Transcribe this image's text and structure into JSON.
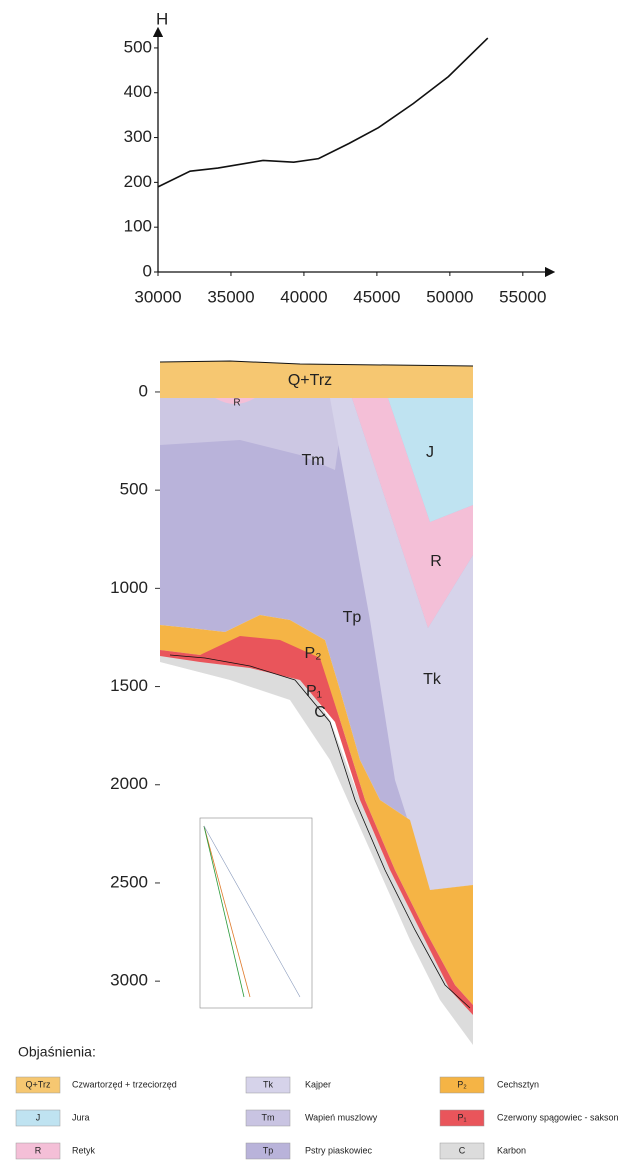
{
  "chart_data": {
    "type": "line",
    "y_label": "H",
    "x": [
      30000,
      32200,
      34100,
      37200,
      39300,
      41000,
      43100,
      45100,
      47500,
      49900,
      52600
    ],
    "values": [
      190,
      225,
      232,
      249,
      245,
      253,
      287,
      322,
      376,
      436,
      522
    ],
    "color": "#111111",
    "xlim": [
      30000,
      57000
    ],
    "ylim": [
      0,
      540
    ],
    "xticks": [
      30000,
      35000,
      40000,
      45000,
      50000,
      55000
    ],
    "yticks": [
      0,
      100,
      200,
      300,
      400,
      500
    ]
  },
  "section": {
    "ylim": [
      -150,
      3320
    ],
    "yticks": [
      0,
      500,
      1000,
      1500,
      2000,
      2500,
      3000
    ],
    "labels": [
      "Q+Trz",
      "R",
      "Tm",
      "J",
      "R",
      "Tp",
      "P₂",
      "Tk",
      "P₁",
      "C"
    ]
  },
  "legend": {
    "title": "Objaśnienia:",
    "items": [
      {
        "code": "Q+Trz",
        "name": "Czwartorzęd + trzeciorzęd",
        "color": "#f6c771"
      },
      {
        "code": "J",
        "name": "Jura",
        "color": "#bfe3f1"
      },
      {
        "code": "R",
        "name": "Retyk",
        "color": "#f4bfd7"
      },
      {
        "code": "Tk",
        "name": "Kajper",
        "color": "#d6d3ea"
      },
      {
        "code": "Tm",
        "name": "Wapień muszlowy",
        "color": "#c9c4e2"
      },
      {
        "code": "Tp",
        "name": "Pstry piaskowiec",
        "color": "#b9b3da"
      },
      {
        "code": "P₂",
        "name": "Cechsztyn",
        "color": "#f5b445"
      },
      {
        "code": "P₁",
        "name": "Czerwony spągowiec - sakson",
        "color": "#e9555b"
      },
      {
        "code": "C",
        "name": "Karbon",
        "color": "#dcdcdc"
      }
    ]
  }
}
